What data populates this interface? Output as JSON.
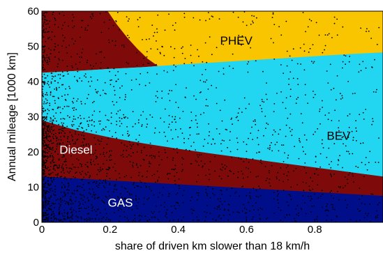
{
  "chart_data": {
    "type": "area",
    "title": "",
    "xlabel": "share of driven km slower than 18 km/h",
    "ylabel": "Annual mileage [1000 km]",
    "xlim": [
      0,
      1
    ],
    "ylim": [
      0,
      60
    ],
    "xticks": [
      0,
      0.2,
      0.4,
      0.6,
      0.8
    ],
    "xtick_labels": [
      "0",
      "0.2",
      "0.4",
      "0.6",
      "0.8"
    ],
    "yticks": [
      0,
      10,
      20,
      30,
      40,
      50,
      60
    ],
    "ytick_labels": [
      "0",
      "10",
      "20",
      "30",
      "40",
      "50",
      "60"
    ],
    "grid": false,
    "regions": [
      {
        "name": "GAS",
        "color": "#000e8a",
        "label": "GAS",
        "label_at": [
          0.23,
          4.5
        ],
        "label_color": "#ffffff",
        "boundary_x": [
          0,
          1
        ],
        "boundary_y": [
          13.0,
          7.5
        ]
      },
      {
        "name": "Diesel",
        "color": "#7f0a0a",
        "label": "Diesel",
        "label_at": [
          0.1,
          19.5
        ],
        "label_color": "#ffffff",
        "boundary_x": [
          0,
          0.1,
          0.2,
          0.3,
          0.4,
          0.5,
          0.6,
          0.7,
          0.8,
          0.9,
          1.0
        ],
        "boundary_y": [
          29.0,
          26.2,
          24.1,
          22.4,
          20.9,
          19.5,
          18.2,
          16.9,
          15.6,
          14.3,
          13.0
        ]
      },
      {
        "name": "BEV",
        "color": "#22d6f2",
        "label": "BEV",
        "label_at": [
          0.87,
          23.5
        ],
        "label_color": "#000000",
        "boundary_x": [
          0,
          0.1,
          0.2,
          0.3,
          0.34,
          0.4,
          0.5,
          0.6,
          0.7,
          0.8,
          0.9,
          1.0
        ],
        "boundary_y": [
          42.5,
          43.0,
          43.6,
          44.1,
          44.4,
          44.8,
          45.4,
          46.0,
          46.6,
          47.2,
          47.8,
          48.3
        ]
      },
      {
        "name": "PHEV",
        "color": "#f9c400",
        "label": "PHEV",
        "label_at": [
          0.57,
          50.5
        ],
        "label_color": "#000000"
      },
      {
        "name": "Diesel-upper",
        "color": "#7f0a0a",
        "boundary_x": [
          0.193,
          0.22,
          0.25,
          0.28,
          0.31,
          0.34
        ],
        "boundary_y": [
          60,
          56.2,
          52.5,
          49.3,
          46.5,
          44.4
        ]
      }
    ],
    "scatter": {
      "name": "sample vehicles",
      "color": "#000000"
    }
  }
}
